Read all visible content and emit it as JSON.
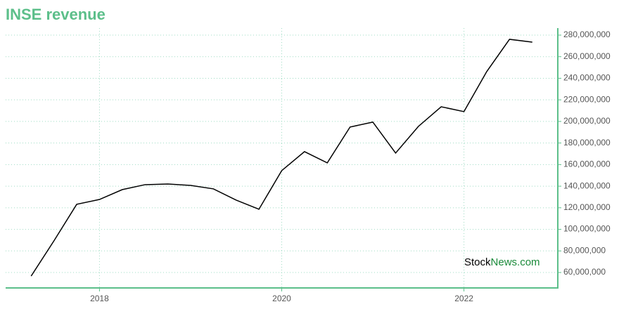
{
  "chart_data": {
    "type": "line",
    "title": "INSE revenue",
    "x": [
      2017.25,
      2017.5,
      2017.75,
      2018,
      2018.25,
      2018.5,
      2018.75,
      2019,
      2019.25,
      2019.5,
      2019.75,
      2020,
      2020.25,
      2020.5,
      2020.75,
      2021,
      2021.25,
      2021.5,
      2021.75,
      2022,
      2022.25,
      2022.5,
      2022.75
    ],
    "series": [
      {
        "name": "INSE",
        "color": "#000000",
        "values": [
          56700000,
          89300000,
          123200000,
          127700000,
          136800000,
          141400000,
          142000000,
          140700000,
          137500000,
          127100000,
          118600000,
          154400000,
          172000000,
          161600000,
          194800000,
          199400000,
          170700000,
          195400000,
          213600000,
          209100000,
          246200000,
          276100000,
          273500000
        ]
      }
    ],
    "xlim": [
      2016.97,
      2023.03
    ],
    "xticks": [
      2018,
      2020,
      2022
    ],
    "ylim": [
      45700000,
      286500000
    ],
    "yticks": [
      {
        "value": 60000000,
        "label": "60,000,000"
      },
      {
        "value": 80000000,
        "label": "80,000,000"
      },
      {
        "value": 100000000,
        "label": "100,000,000"
      },
      {
        "value": 120000000,
        "label": "120,000,000"
      },
      {
        "value": 140000000,
        "label": "140,000,000"
      },
      {
        "value": 160000000,
        "label": "160,000,000"
      },
      {
        "value": 180000000,
        "label": "180,000,000"
      },
      {
        "value": 200000000,
        "label": "200,000,000"
      },
      {
        "value": 220000000,
        "label": "220,000,000"
      },
      {
        "value": 240000000,
        "label": "240,000,000"
      },
      {
        "value": 260000000,
        "label": "260,000,000"
      },
      {
        "value": 280000000,
        "label": "280,000,000"
      }
    ],
    "grid": true,
    "axis_color": "#5cbf8a",
    "watermark": [
      "Stock",
      "News.com"
    ],
    "watermark_colors": [
      "#000000",
      "#1a8a3a"
    ]
  }
}
